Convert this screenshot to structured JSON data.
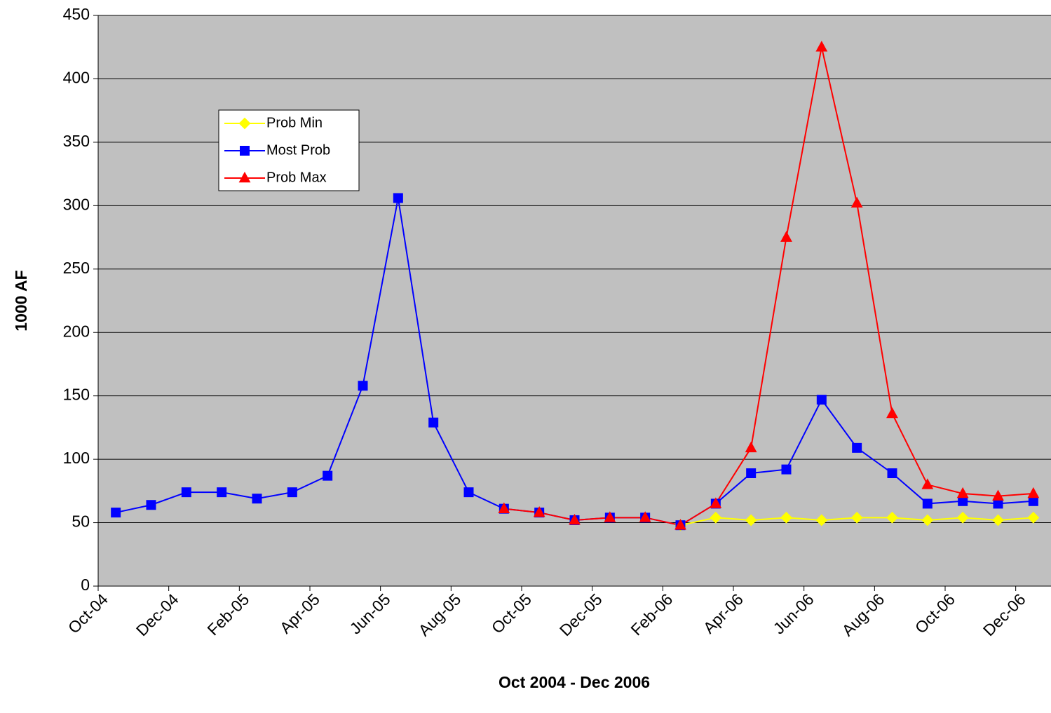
{
  "chart_data": {
    "type": "line",
    "x_label": "Oct 2004 - Dec 2006",
    "y_label": "1000 AF",
    "categories": [
      "Oct-04",
      null,
      "Dec-04",
      null,
      "Feb-05",
      null,
      "Apr-05",
      null,
      "Jun-05",
      null,
      "Aug-05",
      null,
      "Oct-05",
      null,
      "Dec-05",
      null,
      "Feb-06",
      null,
      "Apr-06",
      null,
      "Jun-06",
      null,
      "Aug-06",
      null,
      "Oct-06",
      null,
      "Dec-06"
    ],
    "series": [
      {
        "name": "Prob Min",
        "color": "#ffff00",
        "marker": "diamond",
        "values": [
          null,
          null,
          null,
          null,
          null,
          null,
          null,
          null,
          null,
          null,
          null,
          null,
          null,
          null,
          null,
          null,
          48,
          54,
          52,
          54,
          52,
          54,
          54,
          52,
          54,
          52,
          54
        ]
      },
      {
        "name": "Most Prob",
        "color": "#0000ff",
        "marker": "square",
        "values": [
          58,
          64,
          74,
          74,
          69,
          74,
          87,
          158,
          306,
          129,
          74,
          61,
          58,
          52,
          54,
          54,
          48,
          65,
          89,
          92,
          147,
          109,
          89,
          65,
          67,
          65,
          67
        ]
      },
      {
        "name": "Prob Max",
        "color": "#ff0000",
        "marker": "triangle",
        "values": [
          null,
          null,
          null,
          null,
          null,
          null,
          null,
          null,
          null,
          null,
          null,
          61,
          58,
          52,
          54,
          54,
          48,
          65,
          109,
          275,
          425,
          302,
          136,
          80,
          73,
          71,
          73
        ]
      }
    ],
    "ylim": [
      0,
      450
    ],
    "yticks": [
      0,
      50,
      100,
      150,
      200,
      250,
      300,
      350,
      400,
      450
    ],
    "grid": true,
    "background": "#c0c0c0",
    "legend": "upper left"
  }
}
